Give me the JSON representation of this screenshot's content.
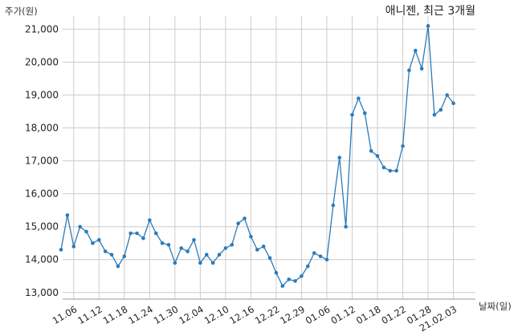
{
  "chart_data": {
    "type": "line",
    "title": "애니젠, 최근 3개월",
    "ylabel": "주가(원)",
    "xlabel": "날짜(일)",
    "ylim": [
      12800,
      21400
    ],
    "grid": true,
    "line_color": "#2b7bb9",
    "yticks": [
      13000,
      14000,
      15000,
      16000,
      17000,
      18000,
      19000,
      20000,
      21000
    ],
    "ytick_labels": [
      "13,000",
      "14,000",
      "15,000",
      "16,000",
      "17,000",
      "18,000",
      "19,000",
      "20,000",
      "21,000"
    ],
    "xtick_indices": [
      2,
      6,
      10,
      14,
      18,
      22,
      26,
      30,
      34,
      38,
      42,
      46,
      50,
      54,
      58,
      62
    ],
    "xtick_labels": [
      "11.06",
      "11.12",
      "11.18",
      "11.24",
      "11.30",
      "12.04",
      "12.10",
      "12.16",
      "12.22",
      "12.29",
      "01.06",
      "01.12",
      "01.18",
      "01.22",
      "01.28",
      "21.02.03"
    ],
    "series": [
      {
        "values": [
          14300,
          15350,
          14400,
          15000,
          14850,
          14500,
          14600,
          14250,
          14150,
          13800,
          14100,
          14800,
          14800,
          14650,
          15200,
          14800,
          14500,
          14450,
          13900,
          14350,
          14250,
          14600,
          13900,
          14150,
          13900,
          14150,
          14350,
          14450,
          15100,
          15250,
          14700,
          14300,
          14400,
          14050,
          13600,
          13200,
          13400,
          13350,
          13500,
          13800,
          14200,
          14100,
          14000,
          15650,
          17100,
          15000,
          18400,
          18900,
          18450,
          17300,
          17150,
          16800,
          16700,
          16700,
          17450,
          19750,
          20350,
          19800,
          21100,
          18400,
          18550,
          19000,
          18750
        ]
      }
    ]
  }
}
